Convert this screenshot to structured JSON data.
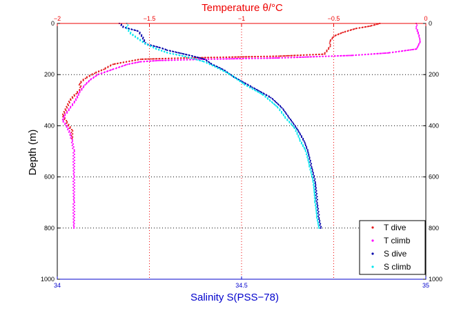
{
  "chart_data": {
    "type": "scatter",
    "title": "Temperature θ/°C",
    "xlabel_bottom": "Salinity S(PSS−78)",
    "ylabel": "Depth (m)",
    "y_axis": {
      "range": [
        0,
        1000
      ],
      "reversed": true,
      "ticks": [
        0,
        200,
        400,
        600,
        800,
        1000
      ],
      "tick_labels": [
        "0",
        "200",
        "400",
        "600",
        "800",
        "1000"
      ]
    },
    "x_top": {
      "range": [
        -2,
        0
      ],
      "ticks": [
        -2,
        -1.5,
        -1,
        -0.5,
        0
      ],
      "tick_labels": [
        "−2",
        "−1.5",
        "−1",
        "−0.5",
        "0"
      ],
      "color": "#ee0000"
    },
    "x_bottom": {
      "range": [
        34,
        35
      ],
      "ticks": [
        34,
        34.5,
        35
      ],
      "tick_labels": [
        "34",
        "34.5",
        "35"
      ],
      "color": "#0000cc"
    },
    "grid": {
      "vertical": [
        -1.5,
        -1,
        -0.5
      ],
      "horizontal": [
        200,
        400,
        600,
        800
      ],
      "style": "dotted"
    },
    "legend_position": "bottom-right",
    "series": [
      {
        "name": "T dive",
        "axis": "top",
        "color": "#e41a1c",
        "points": [
          [
            -0.25,
            0
          ],
          [
            -0.3,
            10
          ],
          [
            -0.38,
            20
          ],
          [
            -0.45,
            35
          ],
          [
            -0.5,
            50
          ],
          [
            -0.52,
            70
          ],
          [
            -0.52,
            90
          ],
          [
            -0.55,
            120
          ],
          [
            -0.8,
            128
          ],
          [
            -1.3,
            135
          ],
          [
            -1.55,
            140
          ],
          [
            -1.7,
            160
          ],
          [
            -1.75,
            180
          ],
          [
            -1.8,
            195
          ],
          [
            -1.85,
            215
          ],
          [
            -1.88,
            235
          ],
          [
            -1.87,
            255
          ],
          [
            -1.9,
            275
          ],
          [
            -1.93,
            300
          ],
          [
            -1.95,
            330
          ],
          [
            -1.97,
            360
          ],
          [
            -1.95,
            385
          ],
          [
            -1.92,
            420
          ],
          [
            -1.92,
            450
          ]
        ]
      },
      {
        "name": "T climb",
        "axis": "top",
        "color": "#ff00ff",
        "points": [
          [
            -0.05,
            0
          ],
          [
            -0.05,
            20
          ],
          [
            -0.04,
            40
          ],
          [
            -0.03,
            70
          ],
          [
            -0.05,
            100
          ],
          [
            -0.2,
            115
          ],
          [
            -0.4,
            125
          ],
          [
            -0.8,
            135
          ],
          [
            -1.2,
            140
          ],
          [
            -1.45,
            145
          ],
          [
            -1.55,
            150
          ],
          [
            -1.62,
            160
          ],
          [
            -1.7,
            180
          ],
          [
            -1.78,
            200
          ],
          [
            -1.82,
            220
          ],
          [
            -1.85,
            240
          ],
          [
            -1.88,
            270
          ],
          [
            -1.9,
            300
          ],
          [
            -1.93,
            330
          ],
          [
            -1.96,
            360
          ],
          [
            -1.97,
            380
          ],
          [
            -1.95,
            400
          ],
          [
            -1.93,
            430
          ],
          [
            -1.92,
            460
          ],
          [
            -1.91,
            500
          ],
          [
            -1.91,
            600
          ],
          [
            -1.91,
            700
          ],
          [
            -1.91,
            800
          ]
        ]
      },
      {
        "name": "S dive",
        "axis": "bottom",
        "color": "#0000aa",
        "points": [
          [
            34.17,
            0
          ],
          [
            34.18,
            15
          ],
          [
            34.22,
            30
          ],
          [
            34.23,
            50
          ],
          [
            34.24,
            80
          ],
          [
            34.28,
            95
          ],
          [
            34.3,
            105
          ],
          [
            34.36,
            125
          ],
          [
            34.4,
            140
          ],
          [
            34.42,
            160
          ],
          [
            34.45,
            180
          ],
          [
            34.48,
            210
          ],
          [
            34.53,
            250
          ],
          [
            34.58,
            290
          ],
          [
            34.61,
            330
          ],
          [
            34.63,
            370
          ],
          [
            34.65,
            410
          ],
          [
            34.67,
            460
          ],
          [
            34.68,
            500
          ],
          [
            34.69,
            560
          ],
          [
            34.7,
            620
          ],
          [
            34.705,
            700
          ],
          [
            34.71,
            760
          ],
          [
            34.715,
            800
          ]
        ]
      },
      {
        "name": "S climb",
        "axis": "bottom",
        "color": "#00e5ee",
        "points": [
          [
            34.19,
            0
          ],
          [
            34.19,
            20
          ],
          [
            34.2,
            40
          ],
          [
            34.22,
            60
          ],
          [
            34.24,
            80
          ],
          [
            34.27,
            100
          ],
          [
            34.3,
            115
          ],
          [
            34.35,
            130
          ],
          [
            34.4,
            150
          ],
          [
            34.43,
            170
          ],
          [
            34.47,
            200
          ],
          [
            34.51,
            240
          ],
          [
            34.56,
            280
          ],
          [
            34.6,
            330
          ],
          [
            34.62,
            370
          ],
          [
            34.645,
            410
          ],
          [
            34.66,
            460
          ],
          [
            34.675,
            500
          ],
          [
            34.685,
            560
          ],
          [
            34.695,
            620
          ],
          [
            34.7,
            700
          ],
          [
            34.705,
            760
          ],
          [
            34.71,
            800
          ]
        ]
      }
    ]
  }
}
